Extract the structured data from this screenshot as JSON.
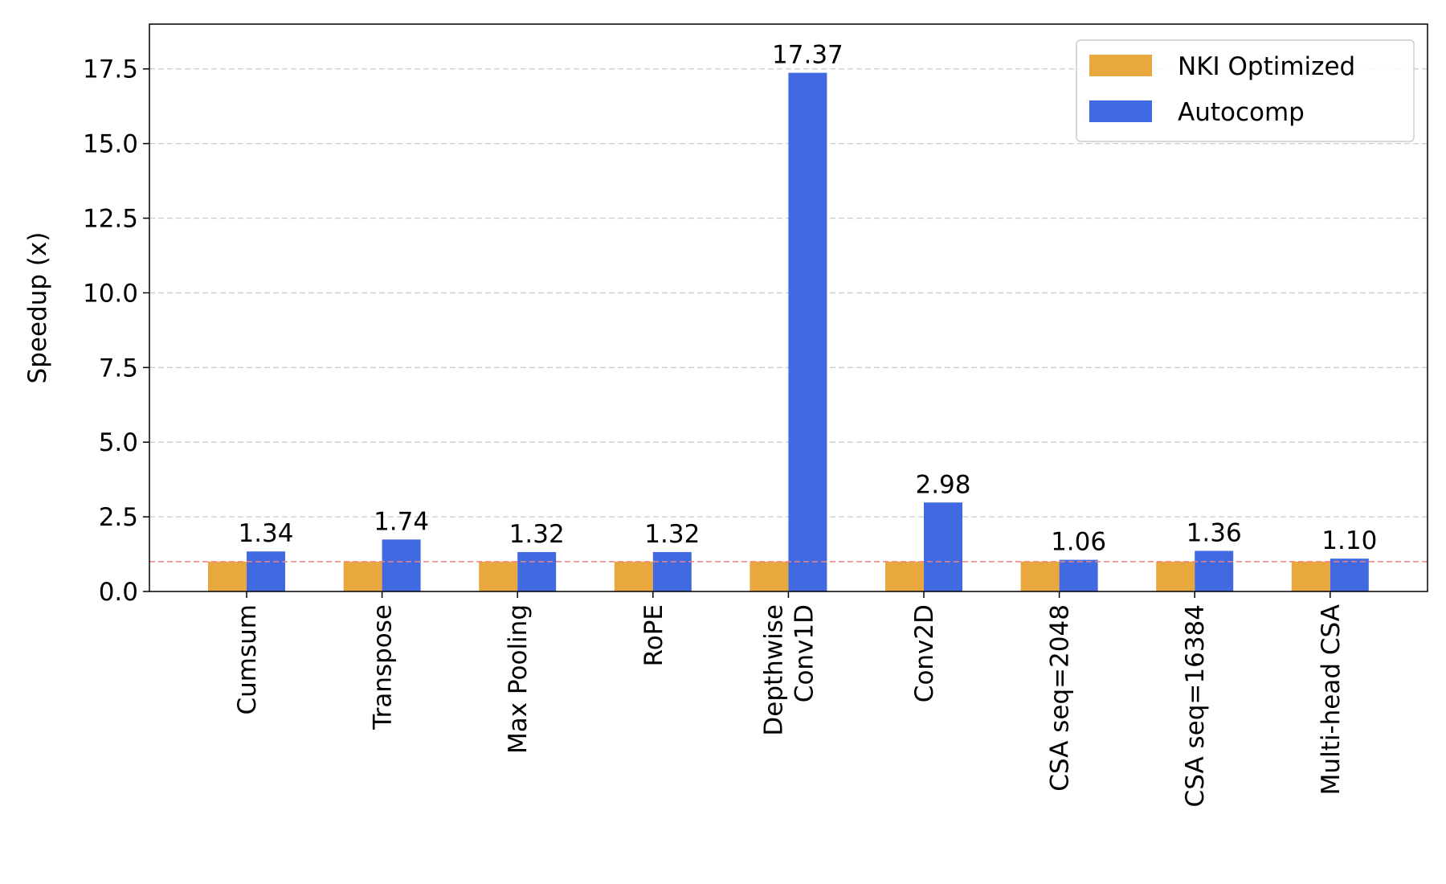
{
  "chart_data": {
    "type": "bar",
    "ylabel": "Speedup (x)",
    "ylim": [
      0,
      19
    ],
    "yticks": [
      "0.0",
      "2.5",
      "5.0",
      "7.5",
      "10.0",
      "12.5",
      "15.0",
      "17.5"
    ],
    "ytick_values": [
      0,
      2.5,
      5.0,
      7.5,
      10.0,
      12.5,
      15.0,
      17.5
    ],
    "grid": "horizontal dashed",
    "reference_line": 1.0,
    "legend_position": "top-right",
    "categories": [
      [
        "Cumsum"
      ],
      [
        "Transpose"
      ],
      [
        "Max Pooling"
      ],
      [
        "RoPE"
      ],
      [
        "Depthwise",
        "Conv1D"
      ],
      [
        "Conv2D"
      ],
      [
        "CSA seq=2048"
      ],
      [
        "CSA seq=16384"
      ],
      [
        "Multi-head CSA"
      ]
    ],
    "series": [
      {
        "name": "NKI Optimized",
        "color": "#E8A83E",
        "values": [
          1,
          1,
          1,
          1,
          1,
          1,
          1,
          1,
          1
        ]
      },
      {
        "name": "Autocomp",
        "color": "#4169E1",
        "values": [
          1.34,
          1.74,
          1.32,
          1.32,
          17.37,
          2.98,
          1.06,
          1.36,
          1.1
        ]
      }
    ],
    "data_labels": [
      "1.34",
      "1.74",
      "1.32",
      "1.32",
      "17.37",
      "2.98",
      "1.06",
      "1.36",
      "1.10"
    ]
  }
}
